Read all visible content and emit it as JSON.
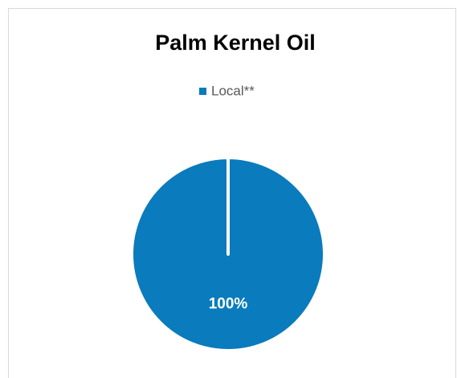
{
  "chart_data": {
    "type": "pie",
    "title": "Palm Kernel Oil",
    "categories": [
      "Local**"
    ],
    "values": [
      100
    ],
    "value_labels": [
      "100%"
    ],
    "colors": [
      "#0a7bbd"
    ],
    "legend": "top"
  }
}
